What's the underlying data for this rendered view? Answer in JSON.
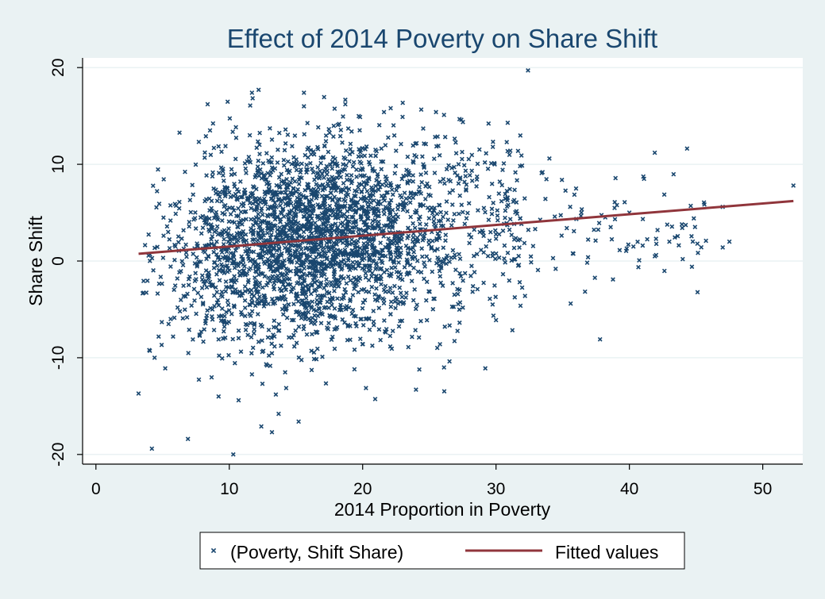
{
  "chart_data": {
    "type": "scatter",
    "title": "Effect of 2014 Poverty on Share Shift",
    "xlabel": "2014 Proportion in Poverty",
    "ylabel": "Share Shift",
    "xlim": [
      -1,
      53
    ],
    "ylim": [
      -21,
      21
    ],
    "x_ticks": [
      0,
      10,
      20,
      30,
      40,
      50
    ],
    "y_ticks": [
      -20,
      -10,
      0,
      10,
      20
    ],
    "x_tick_labels": [
      "0",
      "10",
      "20",
      "30",
      "40",
      "50"
    ],
    "y_tick_labels": [
      "-20",
      "-10",
      "0",
      "10",
      "20"
    ],
    "grid": "horizontal",
    "colors": {
      "background": "#eaf2f3",
      "plot_background": "#ffffff",
      "markers": "#1a476f",
      "fit_line": "#90353b",
      "title": "#1a476f"
    },
    "series": [
      {
        "name": "(Poverty, Shift Share)",
        "kind": "scatter",
        "marker": "x",
        "note": "approx. 3000 counties; dense cloud centred near (15, 2); listed points are visible outliers",
        "points": [
          [
            32.4,
            19.7
          ],
          [
            11.7,
            17.4
          ],
          [
            12.2,
            17.7
          ],
          [
            15.6,
            17.4
          ],
          [
            15.6,
            16.0
          ],
          [
            22.1,
            15.8
          ],
          [
            21.6,
            15.4
          ],
          [
            25.5,
            15.4
          ],
          [
            26.1,
            15.1
          ],
          [
            27.4,
            14.6
          ],
          [
            41.9,
            11.2
          ],
          [
            29.9,
            10.0
          ],
          [
            34.0,
            10.6
          ],
          [
            36.0,
            7.5
          ],
          [
            36.4,
            5.0
          ],
          [
            41.1,
            8.5
          ],
          [
            40.0,
            5.0
          ],
          [
            44.6,
            5.7
          ],
          [
            47.0,
            5.6
          ],
          [
            52.3,
            7.8
          ],
          [
            38.6,
            3.5
          ],
          [
            42.0,
            2.3
          ],
          [
            43.0,
            2.0
          ],
          [
            40.3,
            1.5
          ],
          [
            39.8,
            1.3
          ],
          [
            45.1,
            1.8
          ],
          [
            47.5,
            2.0
          ],
          [
            47.0,
            1.4
          ],
          [
            44.0,
            0.2
          ],
          [
            41.0,
            1.6
          ],
          [
            35.6,
            -4.4
          ],
          [
            37.8,
            -8.1
          ],
          [
            29.2,
            -11.1
          ],
          [
            26.1,
            -11.0
          ],
          [
            24.0,
            -13.3
          ],
          [
            3.2,
            -13.7
          ],
          [
            4.2,
            -19.4
          ],
          [
            6.9,
            -18.4
          ],
          [
            10.3,
            -20.0
          ],
          [
            13.2,
            -17.7
          ],
          [
            12.4,
            -17.1
          ],
          [
            15.2,
            -16.6
          ],
          [
            13.7,
            -15.8
          ],
          [
            10.7,
            -14.4
          ],
          [
            9.2,
            -14.0
          ],
          [
            4.0,
            -9.2
          ],
          [
            4.4,
            -10.0
          ],
          [
            5.2,
            -11.1
          ],
          [
            5.6,
            -6.0
          ],
          [
            6.3,
            -5.2
          ]
        ]
      },
      {
        "name": "Fitted values",
        "kind": "line",
        "x": [
          3.2,
          52.3
        ],
        "y": [
          0.75,
          6.2
        ]
      }
    ],
    "legend": {
      "position": "bottom",
      "entries": [
        "(Poverty, Shift Share)",
        "Fitted values"
      ]
    }
  }
}
